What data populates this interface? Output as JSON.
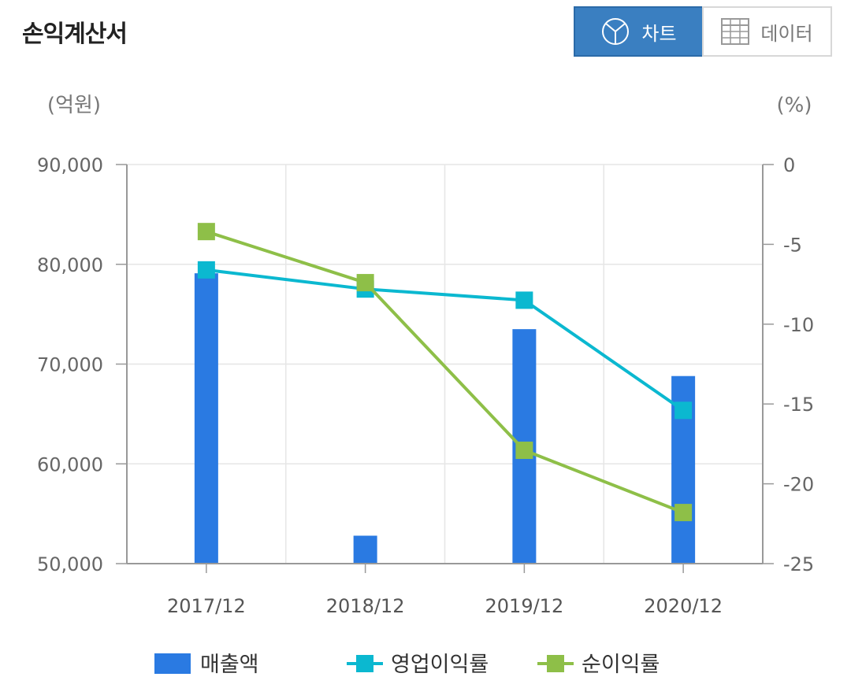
{
  "header": {
    "title": "손익계산서",
    "chart_button": "차트",
    "data_button": "데이터",
    "chart_icon": "pie-chart-icon",
    "data_icon": "table-grid-icon"
  },
  "colors": {
    "bar": "#2a7ae2",
    "operating_margin": "#0bb8d0",
    "net_margin": "#8ebf48",
    "active_button": "#3a7fc1"
  },
  "chart_data": {
    "type": "bar",
    "categories": [
      "2017/12",
      "2018/12",
      "2019/12",
      "2020/12"
    ],
    "y_left_label": "(억원)",
    "y_right_label": "(%)",
    "y_left_ticks": [
      "90,000",
      "80,000",
      "70,000",
      "60,000",
      "50,000"
    ],
    "y_right_ticks": [
      "0",
      "-5",
      "-10",
      "-15",
      "-20",
      "-25"
    ],
    "ylim_left": [
      50000,
      90000
    ],
    "ylim_right": [
      -25,
      0
    ],
    "grid": true,
    "legend_position": "bottom",
    "series": [
      {
        "name": "매출액",
        "type": "bar",
        "axis": "left",
        "values": [
          79100,
          52800,
          73500,
          68800
        ]
      },
      {
        "name": "영업이익률",
        "type": "line",
        "axis": "right",
        "values": [
          -6.6,
          -7.8,
          -8.5,
          -15.4
        ]
      },
      {
        "name": "순이익률",
        "type": "line",
        "axis": "right",
        "values": [
          -4.2,
          -7.4,
          -17.9,
          -21.8
        ]
      }
    ]
  }
}
